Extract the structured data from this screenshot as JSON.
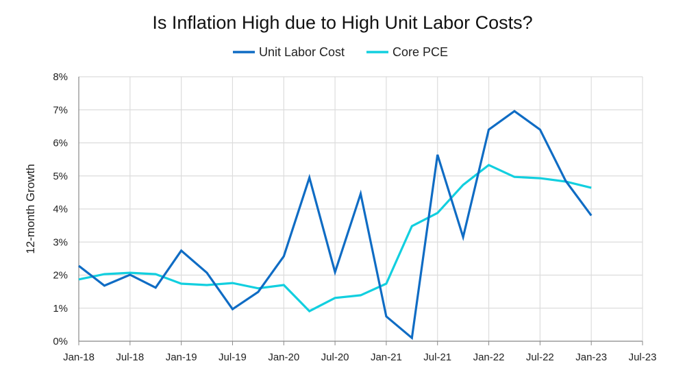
{
  "chart_data": {
    "type": "line",
    "title": "Is Inflation High due to High Unit Labor Costs?",
    "xlabel": "",
    "ylabel": "12-month Growth",
    "ylim": [
      0,
      8
    ],
    "yticks": [
      "0%",
      "1%",
      "2%",
      "3%",
      "4%",
      "5%",
      "6%",
      "7%",
      "8%"
    ],
    "xticks": [
      "Jan-18",
      "Jul-18",
      "Jan-19",
      "Jul-19",
      "Jan-20",
      "Jul-20",
      "Jan-21",
      "Jul-21",
      "Jan-22",
      "Jul-22",
      "Jan-23",
      "Jul-23"
    ],
    "grid": true,
    "legend_position": "top",
    "x": [
      "2018-01",
      "2018-04",
      "2018-07",
      "2018-10",
      "2019-01",
      "2019-04",
      "2019-07",
      "2019-10",
      "2020-01",
      "2020-04",
      "2020-07",
      "2020-10",
      "2021-01",
      "2021-04",
      "2021-07",
      "2021-10",
      "2022-01",
      "2022-04",
      "2022-07",
      "2022-10",
      "2023-01"
    ],
    "series": [
      {
        "name": "Unit Labor Cost",
        "color": "#0f6cc4",
        "values": [
          2.28,
          1.68,
          2.01,
          1.62,
          2.74,
          2.07,
          0.97,
          1.49,
          2.57,
          4.95,
          2.09,
          4.46,
          0.75,
          0.1,
          5.64,
          3.15,
          6.4,
          6.96,
          6.4,
          4.85,
          3.8
        ]
      },
      {
        "name": "Core PCE",
        "color": "#12cfdf",
        "values": [
          1.87,
          2.03,
          2.07,
          2.03,
          1.74,
          1.7,
          1.76,
          1.6,
          1.7,
          0.91,
          1.31,
          1.39,
          1.74,
          3.48,
          3.88,
          4.73,
          5.33,
          4.97,
          4.93,
          4.83,
          4.64
        ]
      }
    ]
  }
}
